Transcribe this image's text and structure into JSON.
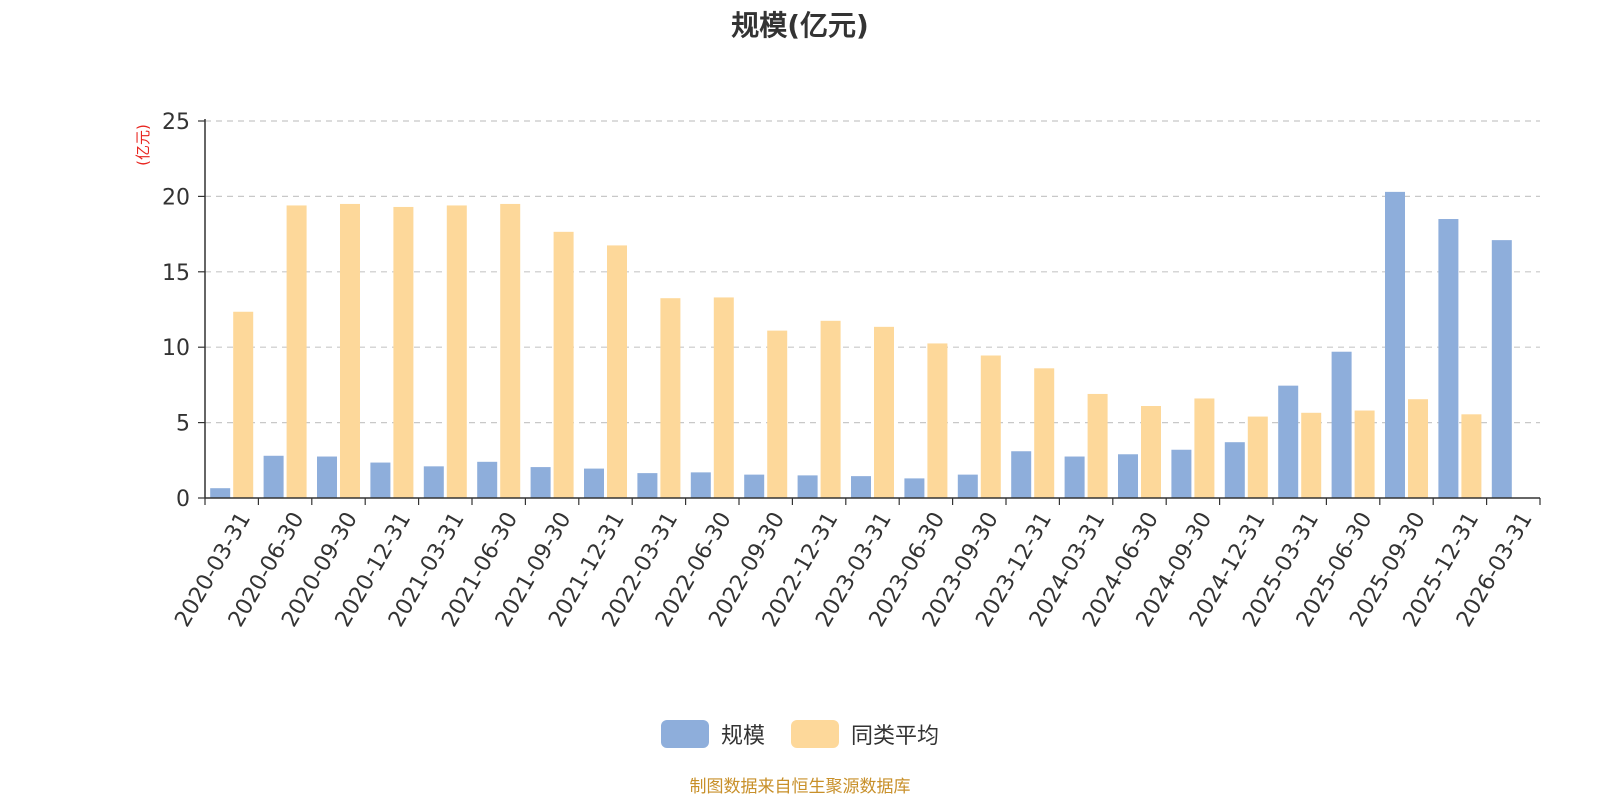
{
  "chart_data": {
    "type": "bar",
    "title": "规模(亿元)",
    "ylabel": "(亿元)",
    "ylim": [
      0,
      25
    ],
    "yticks": [
      0,
      5,
      10,
      15,
      20,
      25
    ],
    "grid": true,
    "legend_position": "bottom-center",
    "categories": [
      "2020-03-31",
      "2020-06-30",
      "2020-09-30",
      "2020-12-31",
      "2021-03-31",
      "2021-06-30",
      "2021-09-30",
      "2021-12-31",
      "2022-03-31",
      "2022-06-30",
      "2022-09-30",
      "2022-12-31",
      "2023-03-31",
      "2023-06-30",
      "2023-09-30",
      "2023-12-31",
      "2024-03-31",
      "2024-06-30",
      "2024-09-30",
      "2024-12-31",
      "2025-03-31",
      "2025-06-30",
      "2025-09-30",
      "2025-12-31",
      "2026-03-31"
    ],
    "series": [
      {
        "name": "规模",
        "color": "#8eaedb",
        "values": [
          0.65,
          2.8,
          2.75,
          2.35,
          2.1,
          2.4,
          2.05,
          1.95,
          1.65,
          1.7,
          1.55,
          1.5,
          1.45,
          1.3,
          1.55,
          3.1,
          2.75,
          2.9,
          3.2,
          3.7,
          7.45,
          9.7,
          20.3,
          18.5,
          17.1
        ]
      },
      {
        "name": "同类平均",
        "color": "#fdd89a",
        "values": [
          12.35,
          19.4,
          19.5,
          19.3,
          19.4,
          19.5,
          17.65,
          16.75,
          13.25,
          13.3,
          11.1,
          11.75,
          11.35,
          10.25,
          9.45,
          8.6,
          6.9,
          6.1,
          6.6,
          5.4,
          5.65,
          5.8,
          6.55,
          5.55,
          null
        ]
      }
    ]
  },
  "footer": {
    "source": "制图数据来自恒生聚源数据库"
  }
}
